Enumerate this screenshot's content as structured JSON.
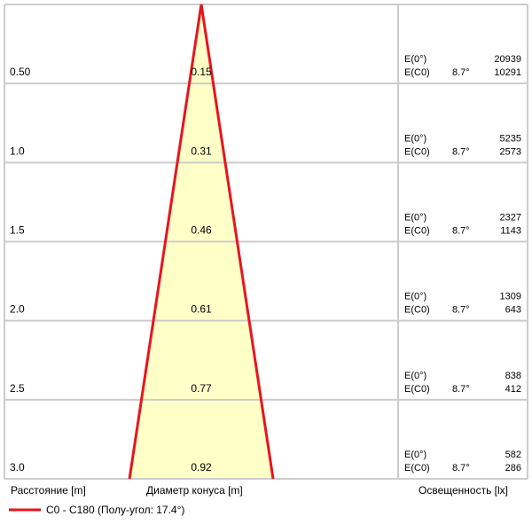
{
  "rows": [
    {
      "distance": "0.50",
      "diameter": "0.15",
      "e0_label": "E(0°)",
      "ec0_label": "E(C0)",
      "angle": "8.7°",
      "e0": "20939",
      "ec0": "10291"
    },
    {
      "distance": "1.0",
      "diameter": "0.31",
      "e0_label": "E(0°)",
      "ec0_label": "E(C0)",
      "angle": "8.7°",
      "e0": "5235",
      "ec0": "2573"
    },
    {
      "distance": "1.5",
      "diameter": "0.46",
      "e0_label": "E(0°)",
      "ec0_label": "E(C0)",
      "angle": "8.7°",
      "e0": "2327",
      "ec0": "1143"
    },
    {
      "distance": "2.0",
      "diameter": "0.61",
      "e0_label": "E(0°)",
      "ec0_label": "E(C0)",
      "angle": "8.7°",
      "e0": "1309",
      "ec0": "643"
    },
    {
      "distance": "2.5",
      "diameter": "0.77",
      "e0_label": "E(0°)",
      "ec0_label": "E(C0)",
      "angle": "8.7°",
      "e0": "838",
      "ec0": "412"
    },
    {
      "distance": "3.0",
      "diameter": "0.92",
      "e0_label": "E(0°)",
      "ec0_label": "E(C0)",
      "angle": "8.7°",
      "e0": "582",
      "ec0": "286"
    }
  ],
  "footer": {
    "distance_label": "Расстояние [m]",
    "diameter_label": "Диаметр конуса [m]",
    "illuminance_label": "Освещенность [lx]"
  },
  "legend": {
    "label": "C0 - C180 (Полу-угол: 17.4°)"
  }
}
